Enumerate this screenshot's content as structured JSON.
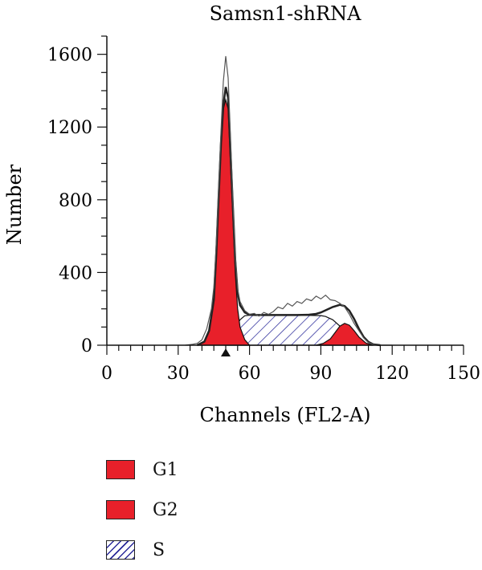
{
  "chart_data": {
    "type": "area",
    "title": "Samsn1-shRNA",
    "xlabel": "Channels (FL2-A)",
    "ylabel": "Number",
    "xlim": [
      0,
      150
    ],
    "ylim": [
      0,
      1700
    ],
    "xticks": [
      0,
      30,
      60,
      90,
      120,
      150
    ],
    "yticks": [
      0,
      400,
      800,
      1200,
      1600
    ],
    "xtick_labels": [
      "0",
      "30",
      "60",
      "90",
      "120",
      "150"
    ],
    "ytick_labels": [
      "0",
      "400",
      "800",
      "1200",
      "1600"
    ],
    "grid": false,
    "legend_position": "bottom-left",
    "series": [
      {
        "name": "G1",
        "color": "#e8202a",
        "fill": "solid",
        "x": [
          38,
          41,
          43,
          45,
          46,
          47,
          48,
          49,
          50,
          51,
          52,
          53,
          54,
          55,
          56,
          58,
          60
        ],
        "y": [
          0,
          20,
          80,
          250,
          500,
          800,
          1100,
          1300,
          1350,
          1300,
          1000,
          700,
          400,
          200,
          100,
          30,
          0
        ]
      },
      {
        "name": "G2",
        "color": "#e8202a",
        "fill": "solid",
        "x": [
          88,
          91,
          94,
          96,
          98,
          100,
          102,
          104,
          106,
          109,
          112
        ],
        "y": [
          0,
          10,
          35,
          70,
          105,
          120,
          110,
          80,
          45,
          12,
          0
        ]
      },
      {
        "name": "S",
        "color": "#2a2a9a",
        "fill": "hatched",
        "x": [
          50,
          52,
          54,
          56,
          58,
          60,
          70,
          80,
          90,
          92,
          95,
          98,
          101,
          103,
          106
        ],
        "y": [
          0,
          30,
          90,
          140,
          162,
          165,
          165,
          165,
          163,
          158,
          140,
          105,
          60,
          25,
          0
        ]
      },
      {
        "name": "",
        "color": "#222222",
        "fill": "none",
        "x": [
          38,
          41,
          43,
          45,
          46,
          47,
          48,
          49,
          50,
          51,
          52,
          53,
          54,
          55,
          56,
          58,
          60,
          63,
          66,
          70,
          75,
          80,
          85,
          88,
          90,
          92,
          95,
          98,
          100,
          102,
          104,
          106,
          108,
          110,
          112,
          115
        ],
        "y": [
          0,
          20,
          80,
          250,
          500,
          810,
          1110,
          1320,
          1420,
          1360,
          1060,
          760,
          470,
          290,
          220,
          180,
          168,
          166,
          166,
          166,
          166,
          166,
          168,
          172,
          180,
          192,
          210,
          222,
          215,
          190,
          145,
          90,
          45,
          18,
          5,
          0
        ]
      },
      {
        "name": "",
        "color": "#555555",
        "fill": "none",
        "x": [
          33,
          36,
          38,
          40,
          42,
          44,
          45,
          46,
          47,
          48,
          49,
          50,
          51,
          52,
          53,
          54,
          55,
          56,
          58,
          60,
          62,
          64,
          66,
          68,
          70,
          72,
          74,
          76,
          78,
          80,
          82,
          84,
          86,
          88,
          90,
          92,
          94,
          96,
          98,
          100,
          102,
          104,
          106,
          108,
          110,
          112,
          115,
          120
        ],
        "y": [
          0,
          5,
          10,
          30,
          90,
          200,
          320,
          560,
          860,
          1180,
          1450,
          1590,
          1470,
          1150,
          800,
          500,
          310,
          240,
          190,
          170,
          175,
          160,
          180,
          170,
          185,
          210,
          200,
          230,
          215,
          240,
          230,
          255,
          245,
          270,
          255,
          275,
          250,
          245,
          230,
          210,
          170,
          120,
          80,
          40,
          15,
          5,
          0,
          0
        ]
      }
    ],
    "markers": [
      {
        "type": "triangle",
        "x": 50,
        "y": 0
      }
    ]
  },
  "legend": {
    "items": [
      {
        "label": "G1",
        "color": "#e8202a",
        "pattern": "solid"
      },
      {
        "label": "G2",
        "color": "#e8202a",
        "pattern": "solid"
      },
      {
        "label": "S",
        "color": "#2a2a9a",
        "pattern": "hatched"
      }
    ]
  }
}
